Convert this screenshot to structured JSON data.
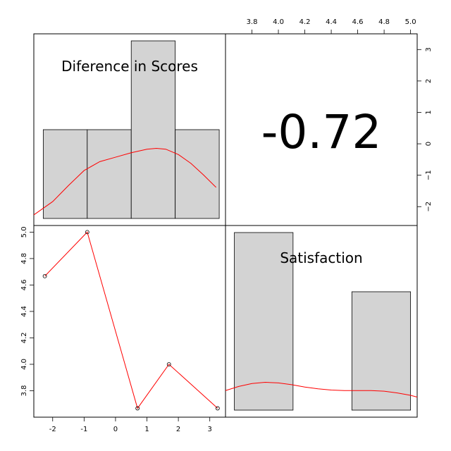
{
  "chart_data": {
    "type": "scatter-matrix",
    "variables": [
      "Diference in Scores",
      "Satisfaction"
    ],
    "correlation": {
      "label": "-0.72",
      "value": -0.72
    },
    "points": [
      {
        "x": -2.25,
        "y": 4.667
      },
      {
        "x": -0.9,
        "y": 5.0
      },
      {
        "x": 0.7,
        "y": 3.667
      },
      {
        "x": 1.7,
        "y": 4.0
      },
      {
        "x": 3.25,
        "y": 3.667
      }
    ],
    "hist_diff": {
      "breaks": [
        -2.3,
        -0.9,
        0.5,
        1.9,
        3.3
      ],
      "counts": [
        1,
        1,
        2,
        1
      ],
      "max_count": 2,
      "density": [
        [
          -2.6,
          0.04
        ],
        [
          -2.0,
          0.19
        ],
        [
          -1.5,
          0.37
        ],
        [
          -1.0,
          0.54
        ],
        [
          -0.5,
          0.64
        ],
        [
          0.0,
          0.69
        ],
        [
          0.5,
          0.74
        ],
        [
          1.0,
          0.78
        ],
        [
          1.3,
          0.79
        ],
        [
          1.6,
          0.78
        ],
        [
          2.0,
          0.72
        ],
        [
          2.4,
          0.62
        ],
        [
          2.8,
          0.49
        ],
        [
          3.2,
          0.35
        ],
        [
          3.7,
          0.19
        ]
      ]
    },
    "hist_sat": {
      "breaks": [
        3.667,
        4.111,
        4.556,
        5.0
      ],
      "counts": [
        3,
        0,
        2
      ],
      "max_count": 3,
      "density": [
        [
          3.6,
          0.33
        ],
        [
          3.7,
          0.4
        ],
        [
          3.8,
          0.45
        ],
        [
          3.9,
          0.47
        ],
        [
          4.0,
          0.46
        ],
        [
          4.1,
          0.43
        ],
        [
          4.2,
          0.39
        ],
        [
          4.3,
          0.36
        ],
        [
          4.4,
          0.34
        ],
        [
          4.5,
          0.33
        ],
        [
          4.6,
          0.33
        ],
        [
          4.7,
          0.33
        ],
        [
          4.8,
          0.32
        ],
        [
          4.9,
          0.29
        ],
        [
          5.0,
          0.25
        ],
        [
          5.05,
          0.22
        ]
      ]
    },
    "axes": {
      "diff": {
        "range": [
          -2.6,
          3.5
        ],
        "ticks": [
          -2,
          -1,
          0,
          1,
          2,
          3
        ]
      },
      "sat": {
        "range": [
          3.6,
          5.05
        ],
        "ticks": [
          3.8,
          4.0,
          4.2,
          4.4,
          4.6,
          4.8,
          5.0
        ],
        "tick_labels": [
          "3.8",
          "4.0",
          "4.2",
          "4.4",
          "4.6",
          "4.8",
          "5.0"
        ]
      }
    }
  }
}
